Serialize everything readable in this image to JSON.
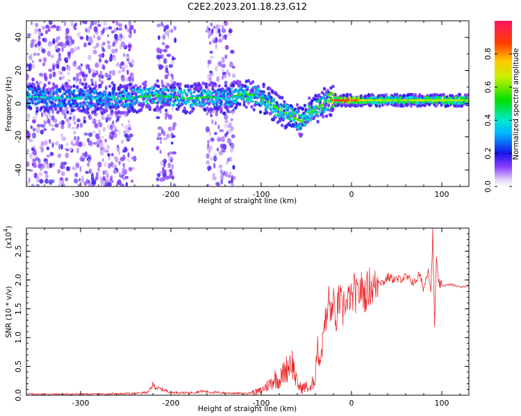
{
  "figure": {
    "title": "C2E2.2023.201.18.23.G12"
  },
  "chart_data": [
    {
      "type": "heatmap",
      "xlabel": "Height of straight line (km)",
      "ylabel": "Frequency (Hz)",
      "xlim": [
        -360,
        130
      ],
      "ylim": [
        -50,
        50
      ],
      "xticks": [
        -300,
        -200,
        -100,
        0,
        100
      ],
      "xtick_labels": [
        "-300",
        "-200",
        "-100",
        "0",
        "100"
      ],
      "yticks": [
        -40,
        -20,
        0,
        20,
        40
      ],
      "ytick_labels": [
        "-40",
        "-20",
        "0",
        "20",
        "40"
      ],
      "colorbar": {
        "label": "Normalized spectral amplitude",
        "range": [
          0,
          1
        ],
        "ticks": [
          0.0,
          0.2,
          0.4,
          0.6,
          0.8
        ],
        "tick_labels": [
          "0.0",
          "0.2",
          "0.4",
          "0.6",
          "0.8"
        ],
        "colormap": "rainbow-pale-to-red"
      },
      "ridge": {
        "description_values": "dominant frequency (Hz) vs height (km)",
        "x": [
          -350,
          -300,
          -250,
          -220,
          -200,
          -180,
          -160,
          -140,
          -120,
          -105,
          -95,
          -85,
          -75,
          -65,
          -55,
          -50,
          -45,
          -40,
          -35,
          -30,
          -25,
          -20,
          -10,
          0,
          20,
          50,
          80,
          100,
          130
        ],
        "y": [
          4,
          3,
          3,
          5,
          4,
          3,
          4,
          3,
          6,
          5,
          2,
          -2,
          -5,
          -8,
          -11,
          -6,
          -5,
          -4,
          -2,
          0,
          1,
          2,
          2,
          2,
          2,
          2,
          2,
          2,
          2
        ],
        "amplitude": [
          0.45,
          0.45,
          0.5,
          0.6,
          0.55,
          0.55,
          0.55,
          0.45,
          0.6,
          0.6,
          0.6,
          0.6,
          0.6,
          0.62,
          0.62,
          0.6,
          0.6,
          0.6,
          0.62,
          0.65,
          0.75,
          0.9,
          0.95,
          0.92,
          0.7,
          0.65,
          0.7,
          0.72,
          0.65
        ]
      },
      "noise_bands_x": [
        [
          -360,
          -240
        ],
        [
          -215,
          -195
        ],
        [
          -160,
          -130
        ]
      ],
      "noise_amplitude": 0.15
    },
    {
      "type": "line",
      "xlabel": "Height of straight line (km)",
      "ylabel": "SNR (10 * v/v)",
      "multiplier_label": "(x10",
      "multiplier_exponent": "4",
      "multiplier_close": ")",
      "xlim": [
        -360,
        130
      ],
      "ylim": [
        0,
        2.9
      ],
      "xticks": [
        -300,
        -200,
        -100,
        0,
        100
      ],
      "xtick_labels": [
        "-300",
        "-200",
        "-100",
        "0",
        "100"
      ],
      "yticks": [
        0.0,
        0.5,
        1.0,
        1.5,
        2.0,
        2.5
      ],
      "ytick_labels": [
        "0.0",
        "0.5",
        "1.0",
        "1.5",
        "2.0",
        "2.5"
      ],
      "series": [
        {
          "color": "#e8262a",
          "x": [
            -360,
            -320,
            -280,
            -240,
            -225,
            -220,
            -215,
            -205,
            -200,
            -180,
            -165,
            -155,
            -140,
            -120,
            -105,
            -100,
            -95,
            -90,
            -85,
            -80,
            -75,
            -70,
            -68,
            -65,
            -62,
            -60,
            -58,
            -55,
            -50,
            -45,
            -40,
            -38,
            -35,
            -32,
            -30,
            -28,
            -25,
            -22,
            -20,
            -18,
            -15,
            -12,
            -10,
            -8,
            -5,
            -2,
            0,
            3,
            6,
            10,
            15,
            20,
            25,
            30,
            35,
            40,
            50,
            60,
            70,
            75,
            80,
            85,
            88,
            90,
            92,
            94,
            96,
            100,
            110,
            120,
            130
          ],
          "y": [
            0.02,
            0.02,
            0.02,
            0.03,
            0.05,
            0.18,
            0.12,
            0.08,
            0.05,
            0.04,
            0.07,
            0.05,
            0.04,
            0.03,
            0.05,
            0.08,
            0.15,
            0.2,
            0.3,
            0.25,
            0.4,
            0.5,
            0.6,
            0.55,
            0.3,
            0.2,
            0.15,
            0.12,
            0.15,
            0.1,
            0.35,
            0.85,
            0.6,
            0.9,
            1.4,
            1.2,
            1.7,
            1.3,
            1.8,
            1.1,
            1.6,
            1.65,
            1.35,
            1.7,
            1.5,
            1.75,
            1.6,
            1.8,
            1.7,
            1.85,
            1.75,
            1.9,
            1.85,
            2.0,
            1.95,
            2.05,
            2.0,
            2.05,
            1.95,
            2.1,
            1.85,
            2.2,
            1.8,
            2.85,
            1.2,
            2.4,
            1.95,
            1.9,
            1.92,
            1.88,
            1.9
          ]
        }
      ]
    }
  ]
}
